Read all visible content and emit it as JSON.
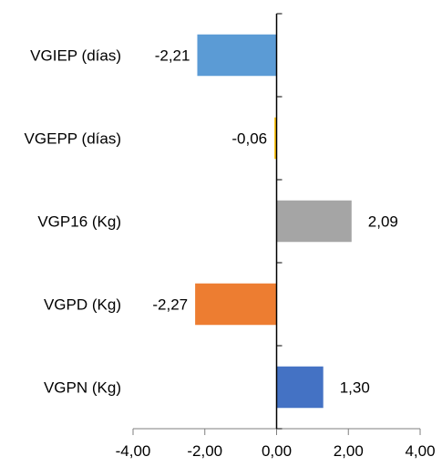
{
  "chart_data": {
    "type": "bar",
    "orientation": "horizontal",
    "title": "",
    "xlabel": "",
    "ylabel": "",
    "categories": [
      "VGIEP (días)",
      "VGEPP (días)",
      "VGP16 (Kg)",
      "VGPD (Kg)",
      "VGPN (Kg)"
    ],
    "values": [
      -2.21,
      -0.06,
      2.09,
      -2.27,
      1.3
    ],
    "value_labels": [
      "-2,21",
      "-0,06",
      "2,09",
      "-2,27",
      "1,30"
    ],
    "bar_colors": [
      "#5b9bd5",
      "#ffc000",
      "#a5a5a5",
      "#ed7d31",
      "#4472c4"
    ],
    "xlim": [
      -4,
      4
    ],
    "xticks": [
      -4,
      -2,
      0,
      2,
      4
    ],
    "xtick_labels": [
      "-4,00",
      "-2,00",
      "0,00",
      "2,00",
      "4,00"
    ],
    "grid": false,
    "legend": "none"
  }
}
